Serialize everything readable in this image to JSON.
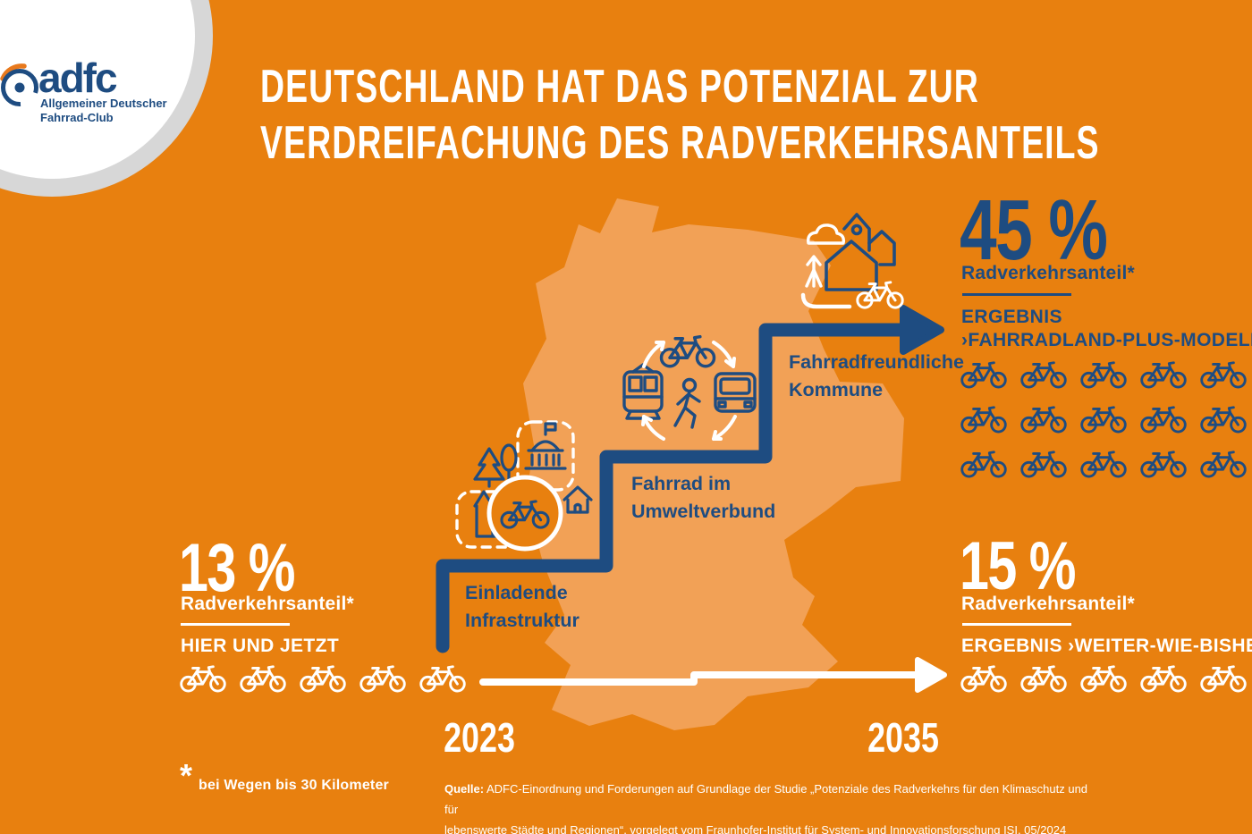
{
  "colors": {
    "background": "#E8800F",
    "map": "#F2A156",
    "blue": "#1E4C81",
    "white": "#FFFFFF",
    "gray_ring": "#D7D7D7",
    "logo_orange": "#E8791D"
  },
  "logo": {
    "brand": "adfc",
    "subtitle_line1": "Allgemeiner Deutscher",
    "subtitle_line2": "Fahrrad-Club"
  },
  "title": {
    "line1": "DEUTSCHLAND HAT DAS POTENZIAL ZUR",
    "line2": "VERDREIFACHUNG DES RADVERKEHRSANTEILS"
  },
  "current": {
    "value": "13 %",
    "label": "Radverkehrsanteil*",
    "scenario": "HIER UND JETZT",
    "bike_count": 5
  },
  "steps": [
    {
      "line1": "Einladende",
      "line2": "Infrastruktur"
    },
    {
      "line1": "Fahrrad im",
      "line2": "Umweltverbund"
    },
    {
      "line1": "Fahrradfreundliche",
      "line2": "Kommune"
    }
  ],
  "result_plus": {
    "value": "45 %",
    "label": "Radverkehrsanteil*",
    "heading_line1": "ERGEBNIS",
    "heading_line2": "›FAHRRADLAND-PLUS-MODELL‹",
    "bike_count": 15
  },
  "result_bau": {
    "value": "15 %",
    "label": "Radverkehrsanteil*",
    "heading": "ERGEBNIS ›WEITER-WIE-BISHER‹",
    "bike_count": 5
  },
  "timeline": {
    "start": "2023",
    "end": "2035"
  },
  "footnote": {
    "mark": "*",
    "text": "bei Wegen bis 30 Kilometer"
  },
  "source": {
    "label": "Quelle:",
    "line1": "ADFC-Einordnung und Forderungen auf Grundlage der Studie „Potenziale des Radverkehrs für den Klimaschutz und für",
    "line2": "lebenswerte Städte und Regionen“, vorgelegt vom Fraunhofer-Institut für System- und Innovationsforschung ISI, 05/2024"
  },
  "chart_data": {
    "type": "pictograph-timeline",
    "title": "Deutschland hat das Potenzial zur Verdreifachung des Radverkehrsanteils",
    "unit": "Radverkehrsanteil in % (bei Wegen bis 30 Kilometer)",
    "x": [
      "2023",
      "2035"
    ],
    "series": [
      {
        "name": "HIER UND JETZT",
        "year": "2023",
        "value_pct": 13,
        "bike_icons": 5,
        "color": "white"
      },
      {
        "name": "ERGEBNIS ›FAHRRADLAND-PLUS-MODELL‹",
        "year": "2035",
        "value_pct": 45,
        "bike_icons": 15,
        "color": "blue"
      },
      {
        "name": "ERGEBNIS ›WEITER-WIE-BISHER‹",
        "year": "2035",
        "value_pct": 15,
        "bike_icons": 5,
        "color": "white"
      }
    ],
    "steps_to_target": [
      "Einladende Infrastruktur",
      "Fahrrad im Umweltverbund",
      "Fahrradfreundliche Kommune"
    ],
    "icon_unit_pct": 3
  }
}
